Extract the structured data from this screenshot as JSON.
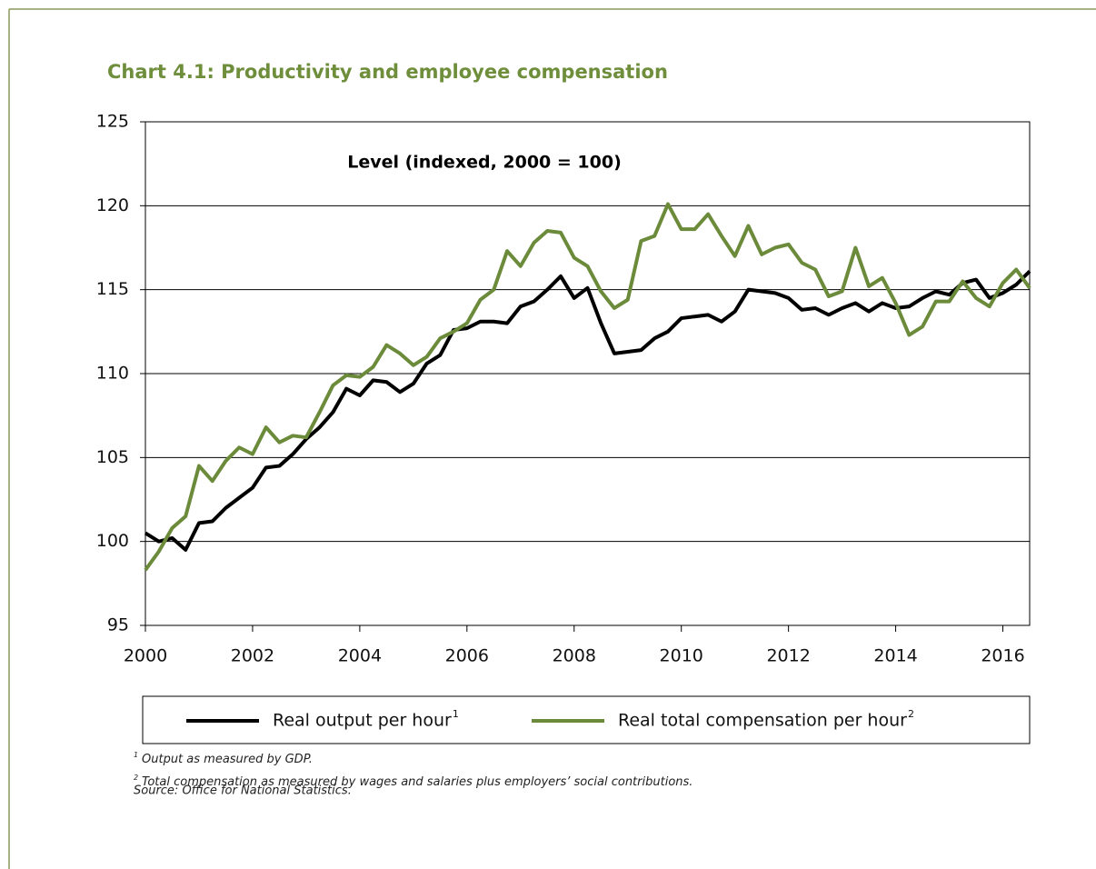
{
  "chart_data": {
    "type": "line",
    "title": "Chart 4.1: Productivity and employee compensation",
    "annotation": "Level (indexed, 2000 = 100)",
    "x": [
      2000,
      2000.25,
      2000.5,
      2000.75,
      2001,
      2001.25,
      2001.5,
      2001.75,
      2002,
      2002.25,
      2002.5,
      2002.75,
      2003,
      2003.25,
      2003.5,
      2003.75,
      2004,
      2004.25,
      2004.5,
      2004.75,
      2005,
      2005.25,
      2005.5,
      2005.75,
      2006,
      2006.25,
      2006.5,
      2006.75,
      2007,
      2007.25,
      2007.5,
      2007.75,
      2008,
      2008.25,
      2008.5,
      2008.75,
      2009,
      2009.25,
      2009.5,
      2009.75,
      2010,
      2010.25,
      2010.5,
      2010.75,
      2011,
      2011.25,
      2011.5,
      2011.75,
      2012,
      2012.25,
      2012.5,
      2012.75,
      2013,
      2013.25,
      2013.5,
      2013.75,
      2014,
      2014.25,
      2014.5,
      2014.75,
      2015,
      2015.25,
      2015.5,
      2015.75,
      2016,
      2016.25,
      2016.5
    ],
    "series": [
      {
        "name": "Real output per hour",
        "note": "1",
        "color": "#000000",
        "values": [
          100.5,
          100.0,
          100.2,
          99.5,
          101.1,
          101.2,
          102.0,
          102.6,
          103.2,
          104.4,
          104.5,
          105.2,
          106.1,
          106.8,
          107.7,
          109.1,
          108.7,
          109.6,
          109.5,
          108.9,
          109.4,
          110.6,
          111.1,
          112.6,
          112.7,
          113.1,
          113.1,
          113.0,
          114.0,
          114.3,
          115.0,
          115.8,
          114.5,
          115.1,
          113.0,
          111.2,
          111.3,
          111.4,
          112.1,
          112.5,
          113.3,
          113.4,
          113.5,
          113.1,
          113.7,
          115.0,
          114.9,
          114.8,
          114.5,
          113.8,
          113.9,
          113.5,
          113.9,
          114.2,
          113.7,
          114.2,
          113.9,
          114.0,
          114.5,
          114.9,
          114.7,
          115.4,
          115.6,
          114.5,
          114.8,
          115.3,
          116.1
        ]
      },
      {
        "name": "Real total compensation per hour",
        "note": "2",
        "color": "#6b8a3a",
        "values": [
          98.3,
          99.4,
          100.8,
          101.5,
          104.5,
          103.6,
          104.8,
          105.6,
          105.2,
          106.8,
          105.9,
          106.3,
          106.2,
          107.7,
          109.3,
          109.9,
          109.8,
          110.4,
          111.7,
          111.2,
          110.5,
          111.0,
          112.1,
          112.5,
          113.0,
          114.4,
          115.0,
          117.3,
          116.4,
          117.8,
          118.5,
          118.4,
          116.9,
          116.4,
          114.9,
          113.9,
          114.4,
          117.9,
          118.2,
          120.1,
          118.6,
          118.6,
          119.5,
          118.2,
          117.0,
          118.8,
          117.1,
          117.5,
          117.7,
          116.6,
          116.2,
          114.6,
          114.9,
          117.5,
          115.2,
          115.7,
          114.2,
          112.3,
          112.8,
          114.3,
          114.3,
          115.5,
          114.5,
          114.0,
          115.4,
          116.2,
          115.1
        ]
      }
    ],
    "xlim": [
      2000,
      2016.5
    ],
    "xticks": [
      2000,
      2002,
      2004,
      2006,
      2008,
      2010,
      2012,
      2014,
      2016
    ],
    "ylim": [
      95,
      125
    ],
    "yticks": [
      95,
      100,
      105,
      110,
      115,
      120,
      125
    ],
    "grid": true,
    "footnotes": [
      {
        "marker": "1",
        "text": "Output as measured by GDP."
      },
      {
        "marker": "2",
        "text": "Total compensation as measured by wages and salaries plus employers’ social contributions."
      }
    ],
    "source": "Source: Office for National Statistics."
  }
}
